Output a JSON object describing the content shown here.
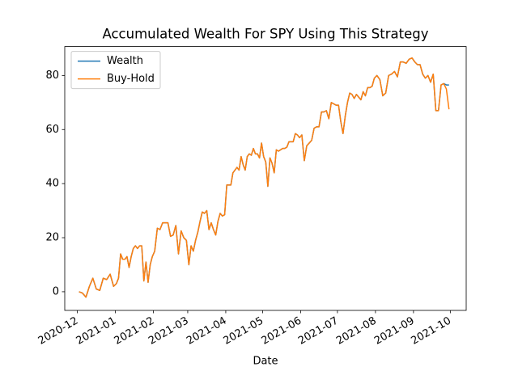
{
  "chart_data": {
    "type": "line",
    "title": "Accumulated Wealth For SPY Using This Strategy",
    "xlabel": "Date",
    "x": [
      "2020-12",
      "2020-12",
      "2020-12",
      "2020-12",
      "2020-12",
      "2020-12",
      "2020-12",
      "2020-12",
      "2020-12",
      "2020-12",
      "2020-12",
      "2021-01",
      "2021-01",
      "2021-01",
      "2021-01",
      "2021-01",
      "2021-01",
      "2021-01",
      "2021-01",
      "2021-01",
      "2021-01",
      "2021-01",
      "2021-01",
      "2021-01",
      "2021-01",
      "2021-01",
      "2021-01",
      "2021-01",
      "2021-01",
      "2021-02",
      "2021-02",
      "2021-02",
      "2021-02",
      "2021-02",
      "2021-02",
      "2021-02",
      "2021-02",
      "2021-02",
      "2021-02",
      "2021-02",
      "2021-02",
      "2021-02",
      "2021-03",
      "2021-03",
      "2021-03",
      "2021-03",
      "2021-03",
      "2021-03",
      "2021-03",
      "2021-03",
      "2021-03",
      "2021-03",
      "2021-03",
      "2021-03",
      "2021-03",
      "2021-03",
      "2021-03",
      "2021-03",
      "2021-03",
      "2021-04",
      "2021-04",
      "2021-04",
      "2021-04",
      "2021-04",
      "2021-04",
      "2021-04",
      "2021-04",
      "2021-04",
      "2021-04",
      "2021-04",
      "2021-04",
      "2021-04",
      "2021-04",
      "2021-04",
      "2021-04",
      "2021-04",
      "2021-04",
      "2021-05",
      "2021-05",
      "2021-05",
      "2021-05",
      "2021-05",
      "2021-05",
      "2021-05",
      "2021-05",
      "2021-05",
      "2021-05",
      "2021-05",
      "2021-05",
      "2021-05",
      "2021-05",
      "2021-05",
      "2021-05",
      "2021-05",
      "2021-05",
      "2021-06",
      "2021-06",
      "2021-06",
      "2021-06",
      "2021-06",
      "2021-06",
      "2021-06",
      "2021-06",
      "2021-06",
      "2021-06",
      "2021-06",
      "2021-06",
      "2021-06",
      "2021-06",
      "2021-06",
      "2021-07",
      "2021-07",
      "2021-07",
      "2021-07",
      "2021-07",
      "2021-07",
      "2021-07",
      "2021-07",
      "2021-07",
      "2021-07",
      "2021-07",
      "2021-07",
      "2021-07",
      "2021-07",
      "2021-07",
      "2021-07",
      "2021-07",
      "2021-08",
      "2021-08",
      "2021-08",
      "2021-08",
      "2021-08",
      "2021-08",
      "2021-08",
      "2021-08",
      "2021-08",
      "2021-08",
      "2021-08",
      "2021-08",
      "2021-08",
      "2021-09",
      "2021-09",
      "2021-09",
      "2021-09",
      "2021-09",
      "2021-09",
      "2021-09",
      "2021-09",
      "2021-09",
      "2021-09",
      "2021-09",
      "2021-09",
      "2021-09",
      "2021-09"
    ],
    "xticks": [
      "2020-12",
      "2021-01",
      "2021-02",
      "2021-03",
      "2021-04",
      "2021-05",
      "2021-06",
      "2021-07",
      "2021-08",
      "2021-09",
      "2021-10"
    ],
    "series": [
      {
        "name": "Wealth",
        "color": "#1f77b4",
        "values": [
          0,
          -0.5,
          -2,
          2,
          5,
          1,
          0.5,
          5,
          4.5,
          6.5,
          2,
          3,
          5,
          14,
          12,
          12,
          13,
          9,
          13,
          16,
          17,
          16,
          17,
          17,
          4,
          11,
          3.5,
          10,
          13,
          15,
          23.5,
          23,
          25.5,
          25.5,
          25.5,
          20.5,
          21,
          24.5,
          14,
          22.5,
          20,
          19,
          10,
          17,
          15,
          19,
          22,
          26,
          29.5,
          29,
          30,
          23,
          25.5,
          23,
          21,
          26,
          29,
          28,
          28.5,
          39.5,
          39.5,
          39.5,
          44,
          45,
          46,
          45,
          50,
          47,
          45,
          50,
          51,
          50.5,
          53,
          51,
          51,
          49.5,
          55,
          50,
          48,
          39,
          49.5,
          47.5,
          44,
          52.5,
          52,
          52.5,
          53,
          53,
          53.5,
          55.5,
          55.5,
          55.5,
          58.5,
          58,
          57,
          58,
          48.5,
          54,
          55,
          56,
          60.5,
          61,
          61,
          66.5,
          66.5,
          67,
          64,
          70,
          69.5,
          69,
          69,
          63,
          58.5,
          65,
          70,
          73.5,
          73,
          71.5,
          73,
          72,
          71,
          74,
          72.5,
          75.5,
          75.5,
          76,
          79,
          80,
          78.5,
          72.5,
          73.5,
          80,
          80.5,
          81.5,
          79.5,
          85,
          85,
          84.5,
          86,
          86.5,
          85,
          84,
          84,
          80.5,
          79,
          80,
          77.5,
          80.5,
          67,
          67,
          76.5,
          77,
          76.5,
          76.5
        ]
      },
      {
        "name": "Buy-Hold",
        "color": "#ff7f0e",
        "values": [
          0,
          -0.5,
          -2,
          2,
          5,
          1,
          0.5,
          5,
          4.5,
          6.5,
          2,
          3,
          5,
          14,
          12,
          12,
          13,
          9,
          13,
          16,
          17,
          16,
          17,
          17,
          4,
          11,
          3.5,
          10,
          13,
          15,
          23.5,
          23,
          25.5,
          25.5,
          25.5,
          20.5,
          21,
          24.5,
          14,
          22.5,
          20,
          19,
          10,
          17,
          15,
          19,
          22,
          26,
          29.5,
          29,
          30,
          23,
          25.5,
          23,
          21,
          26,
          29,
          28,
          28.5,
          39.5,
          39.5,
          39.5,
          44,
          45,
          46,
          45,
          50,
          47,
          45,
          50,
          51,
          50.5,
          53,
          51,
          51,
          49.5,
          55,
          50,
          48,
          39,
          49.5,
          47.5,
          44,
          52.5,
          52,
          52.5,
          53,
          53,
          53.5,
          55.5,
          55.5,
          55.5,
          58.5,
          58,
          57,
          58,
          48.5,
          54,
          55,
          56,
          60.5,
          61,
          61,
          66.5,
          66.5,
          67,
          64,
          70,
          69.5,
          69,
          69,
          63,
          58.5,
          65,
          70,
          73.5,
          73,
          71.5,
          73,
          72,
          71,
          74,
          72.5,
          75.5,
          75.5,
          76,
          79,
          80,
          78.5,
          72.5,
          73.5,
          80,
          80.5,
          81.5,
          79.5,
          85,
          85,
          84.5,
          86,
          86.5,
          85,
          84,
          84,
          80.5,
          79,
          80,
          77.5,
          80.5,
          67,
          67,
          76.5,
          77,
          75,
          67.5
        ]
      }
    ],
    "ylim": [
      -6.9,
      90.7
    ],
    "yticks": [
      0,
      20,
      40,
      60,
      80
    ],
    "legend": "upper left"
  }
}
